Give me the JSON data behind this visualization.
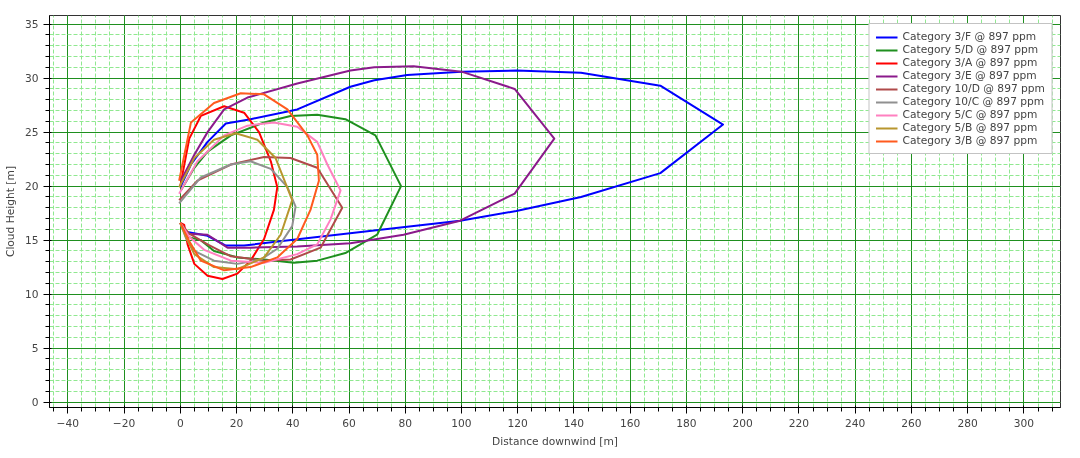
{
  "chart_data": {
    "type": "line",
    "xlabel": "Distance downwind [m]",
    "ylabel": "Cloud Height [m]",
    "xlim": [
      -46.5,
      313
    ],
    "ylim": [
      -0.5,
      35.8
    ],
    "xticks": [
      -40,
      -20,
      0,
      20,
      40,
      60,
      80,
      100,
      120,
      140,
      160,
      180,
      200,
      220,
      240,
      260,
      280,
      300
    ],
    "yticks": [
      0,
      5,
      10,
      15,
      20,
      25,
      30,
      35
    ],
    "grid": true,
    "legend": "top right",
    "line_style": "solid",
    "marker": "none",
    "series": [
      {
        "name": "Category 3/F @ 897 ppm",
        "color": "#0000ff",
        "x": [
          0,
          1.5,
          9.7,
          16.2,
          22.7,
          68.9,
          99.5,
          119.5,
          142.5,
          170.7,
          193,
          170.7,
          142.5,
          119.5,
          100,
          80.7,
          69,
          60.5,
          41.6,
          25,
          16.2,
          9.7,
          3.8,
          0
        ],
        "values": [
          16.6,
          15.8,
          15.4,
          14.5,
          14.5,
          15.9,
          16.8,
          17.7,
          19.0,
          21.2,
          25.7,
          29.3,
          30.5,
          30.7,
          30.6,
          30.3,
          29.8,
          29.2,
          27.1,
          26.2,
          25.8,
          24.1,
          22.0,
          19.9
        ]
      },
      {
        "name": "Category 5/D @ 897 ppm",
        "color": "#1f8f1f",
        "x": [
          0,
          2.6,
          7.3,
          12,
          20.3,
          29.8,
          40.4,
          48.7,
          58.7,
          70,
          78.5,
          69.4,
          58.7,
          48.7,
          39.2,
          29.8,
          18,
          9.7,
          5,
          0.2
        ],
        "values": [
          16.6,
          15.3,
          15.0,
          14.0,
          13.4,
          13.2,
          12.9,
          13.1,
          13.8,
          15.5,
          20,
          24.7,
          26.2,
          26.6,
          26.5,
          25.9,
          24.7,
          23.2,
          21.7,
          19.6
        ]
      },
      {
        "name": "Category 3/A @ 897 ppm",
        "color": "#ff0000",
        "x": [
          0,
          1.4,
          2.6,
          5,
          9.7,
          15,
          20.3,
          25,
          29.8,
          33.3,
          34.5,
          32.2,
          28,
          22.7,
          15.6,
          7.3,
          3.2,
          0
        ],
        "values": [
          16.6,
          16.4,
          14.6,
          12.8,
          11.7,
          11.4,
          11.9,
          13.1,
          15.1,
          17.8,
          19.9,
          22.3,
          25,
          26.8,
          27.4,
          26.5,
          24.4,
          20
        ]
      },
      {
        "name": "Category 3/E @ 897 ppm",
        "color": "#8b1a8b",
        "x": [
          0,
          2.6,
          9.7,
          16.8,
          25,
          41.6,
          60.5,
          79.4,
          99.5,
          118.9,
          133,
          118.9,
          100,
          83,
          69,
          60.5,
          41.6,
          23.9,
          15.6,
          9.7,
          5,
          0.2
        ],
        "values": [
          16.6,
          15.6,
          15.5,
          14.3,
          14.3,
          14.4,
          14.7,
          15.5,
          16.8,
          19.3,
          24.4,
          29.0,
          30.6,
          31.1,
          31.0,
          30.7,
          29.5,
          28.2,
          27.1,
          25,
          22.9,
          20.5
        ]
      },
      {
        "name": "Category 10/D @ 897 ppm",
        "color": "#b04a4a",
        "x": [
          0,
          3.2,
          9.7,
          18,
          29.8,
          39.2,
          49.9,
          57.6,
          48.7,
          39.2,
          29.8,
          18,
          6.1,
          -0.4
        ],
        "values": [
          16.6,
          15.6,
          14.6,
          13.5,
          13.1,
          13.2,
          14.3,
          18,
          21.7,
          22.6,
          22.7,
          22,
          20.5,
          18.7
        ]
      },
      {
        "name": "Category 10/C @ 897 ppm",
        "color": "#909090",
        "x": [
          0,
          2,
          5,
          12,
          20.3,
          28.6,
          34.5,
          39.8,
          41,
          38.1,
          32.2,
          25,
          18,
          7.3,
          -0.4
        ],
        "values": [
          16.6,
          15.2,
          14.0,
          13.1,
          12.8,
          13.2,
          14.2,
          16.3,
          18.1,
          19.9,
          21.6,
          22.3,
          22,
          20.8,
          18.4
        ]
      },
      {
        "name": "Category 5/C @ 897 ppm",
        "color": "#ff80c0",
        "x": [
          0,
          3.2,
          8.5,
          18,
          29.8,
          41.6,
          48.7,
          53.4,
          57,
          52.3,
          48.7,
          41.6,
          33.3,
          23.9,
          15.6,
          6.1,
          -0.4
        ],
        "values": [
          16.6,
          15.3,
          14.1,
          13.1,
          12.9,
          13.7,
          14.6,
          16.9,
          19.6,
          22,
          24.1,
          25.5,
          25.9,
          25.6,
          24.7,
          22.3,
          19.3
        ]
      },
      {
        "name": "Category 5/B @ 897 ppm",
        "color": "#b8962e",
        "x": [
          0,
          2,
          5,
          12,
          20.3,
          29.8,
          35.7,
          39.8,
          33.9,
          27.4,
          19.7,
          12,
          5,
          -0.4
        ],
        "values": [
          16.6,
          15.3,
          13.7,
          12.5,
          12.3,
          13.4,
          15.5,
          18.7,
          22.6,
          24.3,
          24.9,
          24.3,
          22.6,
          19.9
        ]
      },
      {
        "name": "Category 3/B @ 897 ppm",
        "color": "#ff5a1e",
        "x": [
          0,
          3.2,
          7.3,
          15.6,
          25,
          34.5,
          41.6,
          46.3,
          49.3,
          48.7,
          45.2,
          38.1,
          29.8,
          21.5,
          12,
          3.8,
          -0.4
        ],
        "values": [
          16.6,
          14.9,
          13.1,
          12.2,
          12.5,
          13.4,
          15.1,
          17.8,
          20.5,
          22.9,
          24.7,
          27.1,
          28.5,
          28.6,
          27.7,
          25.9,
          20.5
        ]
      }
    ]
  }
}
